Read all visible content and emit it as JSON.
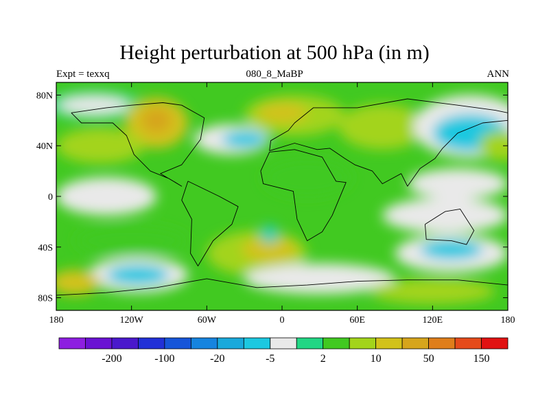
{
  "figure": {
    "title": "Height perturbation at 500 hPa (in m)",
    "left_label": "Expt = texxq",
    "center_label": "080_8_MaBP",
    "right_label": "ANN"
  },
  "map": {
    "projection": "cylindrical-equidistant",
    "lon_range": [
      -180,
      180
    ],
    "lat_range": [
      -90,
      90
    ],
    "lon_ticks": [
      {
        "value": -180,
        "label": "180"
      },
      {
        "value": -120,
        "label": "120W"
      },
      {
        "value": -60,
        "label": "60W"
      },
      {
        "value": 0,
        "label": "0"
      },
      {
        "value": 60,
        "label": "60E"
      },
      {
        "value": 120,
        "label": "120E"
      },
      {
        "value": 180,
        "label": "180"
      }
    ],
    "lat_ticks": [
      {
        "value": 80,
        "label": "80N"
      },
      {
        "value": 40,
        "label": "40N"
      },
      {
        "value": 0,
        "label": "0"
      },
      {
        "value": -40,
        "label": "40S"
      },
      {
        "value": -80,
        "label": "80S"
      }
    ],
    "field_blobs": [
      {
        "lon": -150,
        "lat": 72,
        "rlon": 40,
        "rlat": 12,
        "level": 0
      },
      {
        "lon": -150,
        "lat": 72,
        "rlon": 28,
        "rlat": 7,
        "level": -1
      },
      {
        "lon": -100,
        "lat": 58,
        "rlon": 25,
        "rlat": 20,
        "level": 3
      },
      {
        "lon": -100,
        "lat": 60,
        "rlon": 12,
        "rlat": 10,
        "level": 4
      },
      {
        "lon": -145,
        "lat": 40,
        "rlon": 35,
        "rlat": 14,
        "level": 2
      },
      {
        "lon": -40,
        "lat": 45,
        "rlon": 30,
        "rlat": 12,
        "level": -1
      },
      {
        "lon": -30,
        "lat": 45,
        "rlon": 18,
        "rlat": 7,
        "level": -2
      },
      {
        "lon": 10,
        "lat": 64,
        "rlon": 40,
        "rlat": 16,
        "level": 2
      },
      {
        "lon": 0,
        "lat": 66,
        "rlon": 20,
        "rlat": 8,
        "level": 3
      },
      {
        "lon": 80,
        "lat": 55,
        "rlon": 35,
        "rlat": 18,
        "level": 2
      },
      {
        "lon": 150,
        "lat": 55,
        "rlon": 45,
        "rlat": 25,
        "level": -1
      },
      {
        "lon": 150,
        "lat": 50,
        "rlon": 30,
        "rlat": 15,
        "level": -2
      },
      {
        "lon": 175,
        "lat": 40,
        "rlon": 18,
        "rlat": 12,
        "level": 2
      },
      {
        "lon": -140,
        "lat": 0,
        "rlon": 40,
        "rlat": 15,
        "level": -1
      },
      {
        "lon": 20,
        "lat": 15,
        "rlon": 35,
        "rlat": 15,
        "level": 1
      },
      {
        "lon": 140,
        "lat": 10,
        "rlon": 40,
        "rlat": 12,
        "level": -1
      },
      {
        "lon": 130,
        "lat": -15,
        "rlon": 50,
        "rlat": 14,
        "level": -1
      },
      {
        "lon": -120,
        "lat": -35,
        "rlon": 45,
        "rlat": 12,
        "level": 1
      },
      {
        "lon": -20,
        "lat": -45,
        "rlon": 40,
        "rlat": 18,
        "level": 2
      },
      {
        "lon": -10,
        "lat": -42,
        "rlon": 22,
        "rlat": 10,
        "level": 3
      },
      {
        "lon": -10,
        "lat": -30,
        "rlon": 7,
        "rlat": 7,
        "level": -2
      },
      {
        "lon": -10,
        "lat": -30,
        "rlon": 4,
        "rlat": 4,
        "level": 0
      },
      {
        "lon": -115,
        "lat": -62,
        "rlon": 40,
        "rlat": 14,
        "level": -1
      },
      {
        "lon": -115,
        "lat": -62,
        "rlon": 25,
        "rlat": 8,
        "level": -2
      },
      {
        "lon": 30,
        "lat": -65,
        "rlon": 60,
        "rlat": 12,
        "level": -1
      },
      {
        "lon": 135,
        "lat": -45,
        "rlon": 45,
        "rlat": 15,
        "level": -1
      },
      {
        "lon": 135,
        "lat": -42,
        "rlon": 25,
        "rlat": 8,
        "level": -2
      },
      {
        "lon": -165,
        "lat": -68,
        "rlon": 20,
        "rlat": 10,
        "level": 3
      },
      {
        "lon": 120,
        "lat": -75,
        "rlon": 50,
        "rlat": 10,
        "level": 2
      }
    ],
    "continent_outlines": [
      [
        [
          -168,
          66
        ],
        [
          -140,
          70
        ],
        [
          -120,
          72
        ],
        [
          -95,
          74
        ],
        [
          -80,
          72
        ],
        [
          -62,
          62
        ],
        [
          -65,
          45
        ],
        [
          -80,
          25
        ],
        [
          -97,
          18
        ],
        [
          -80,
          8
        ],
        [
          -90,
          14
        ],
        [
          -105,
          20
        ],
        [
          -118,
          33
        ],
        [
          -124,
          48
        ],
        [
          -135,
          58
        ],
        [
          -160,
          58
        ],
        [
          -168,
          66
        ]
      ],
      [
        [
          -75,
          12
        ],
        [
          -50,
          0
        ],
        [
          -35,
          -8
        ],
        [
          -40,
          -22
        ],
        [
          -55,
          -35
        ],
        [
          -67,
          -55
        ],
        [
          -73,
          -45
        ],
        [
          -72,
          -18
        ],
        [
          -80,
          -3
        ],
        [
          -75,
          12
        ]
      ],
      [
        [
          -17,
          20
        ],
        [
          -10,
          35
        ],
        [
          10,
          37
        ],
        [
          32,
          31
        ],
        [
          43,
          12
        ],
        [
          51,
          11
        ],
        [
          40,
          -15
        ],
        [
          32,
          -28
        ],
        [
          20,
          -35
        ],
        [
          12,
          -18
        ],
        [
          9,
          4
        ],
        [
          -15,
          10
        ],
        [
          -17,
          20
        ]
      ],
      [
        [
          -10,
          36
        ],
        [
          -9,
          44
        ],
        [
          5,
          52
        ],
        [
          10,
          58
        ],
        [
          25,
          70
        ],
        [
          60,
          70
        ],
        [
          100,
          77
        ],
        [
          140,
          72
        ],
        [
          170,
          68
        ],
        [
          180,
          66
        ],
        [
          180,
          60
        ],
        [
          160,
          58
        ],
        [
          140,
          50
        ],
        [
          128,
          38
        ],
        [
          122,
          30
        ],
        [
          110,
          22
        ],
        [
          100,
          8
        ],
        [
          95,
          18
        ],
        [
          80,
          10
        ],
        [
          72,
          20
        ],
        [
          58,
          25
        ],
        [
          50,
          30
        ],
        [
          38,
          38
        ],
        [
          28,
          37
        ],
        [
          10,
          42
        ],
        [
          -10,
          36
        ]
      ],
      [
        [
          114,
          -22
        ],
        [
          130,
          -12
        ],
        [
          142,
          -10
        ],
        [
          153,
          -27
        ],
        [
          147,
          -38
        ],
        [
          135,
          -35
        ],
        [
          115,
          -34
        ],
        [
          114,
          -22
        ]
      ],
      [
        [
          -180,
          -78
        ],
        [
          -140,
          -76
        ],
        [
          -100,
          -72
        ],
        [
          -60,
          -65
        ],
        [
          -20,
          -72
        ],
        [
          20,
          -70
        ],
        [
          60,
          -67
        ],
        [
          100,
          -66
        ],
        [
          140,
          -66
        ],
        [
          180,
          -70
        ],
        [
          180,
          -90
        ],
        [
          -180,
          -90
        ],
        [
          -180,
          -78
        ]
      ]
    ]
  },
  "colorbar": {
    "colors": [
      "#8d1ee0",
      "#6a12d3",
      "#4a18cc",
      "#2130d7",
      "#1655d9",
      "#1684df",
      "#19a9db",
      "#1cc8e0",
      "#e9e9e9",
      "#22d684",
      "#41c921",
      "#a3d41b",
      "#d2c21a",
      "#d6a51c",
      "#df7e1b",
      "#e54b1b",
      "#e11212"
    ],
    "labels": [
      {
        "boundary": 2,
        "text": "-200"
      },
      {
        "boundary": 4,
        "text": "-100"
      },
      {
        "boundary": 6,
        "text": "-20"
      },
      {
        "boundary": 8,
        "text": "-5"
      },
      {
        "boundary": 10,
        "text": "2"
      },
      {
        "boundary": 12,
        "text": "10"
      },
      {
        "boundary": 14,
        "text": "50"
      },
      {
        "boundary": 16,
        "text": "150"
      }
    ]
  }
}
